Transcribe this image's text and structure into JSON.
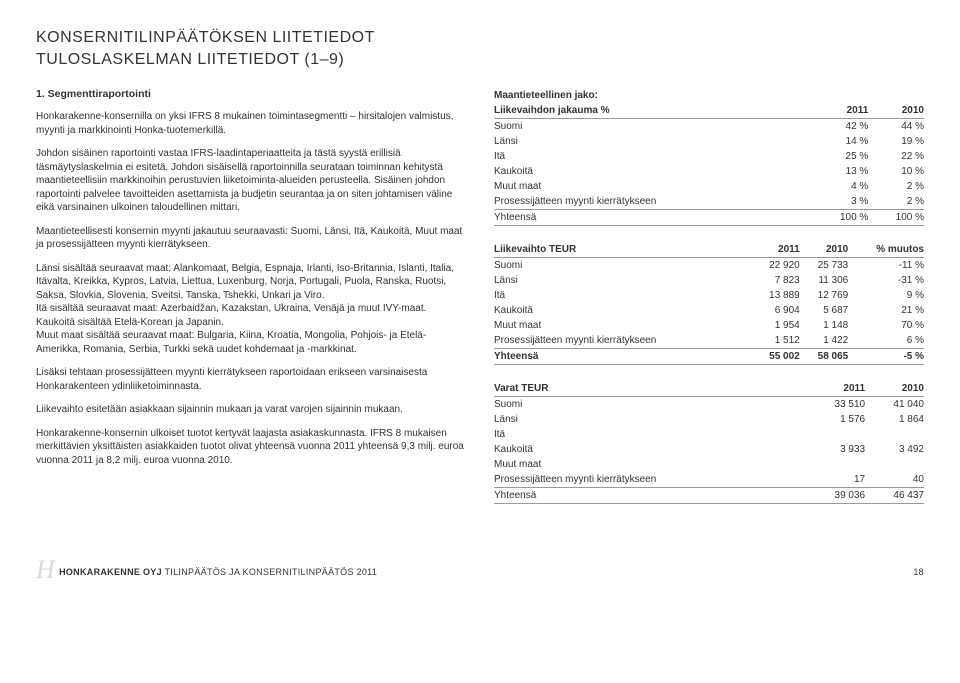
{
  "header": {
    "line1": "KONSERNITILINPÄÄTÖKSEN LIITETIEDOT",
    "line2": "TULOSLASKELMAN LIITETIEDOT (1–9)"
  },
  "left": {
    "section_title": "1. Segmenttiraportointi",
    "p1": "Honkarakenne-konsernilla on yksi IFRS 8 mukainen toimintasegmentti – hirsitalojen valmistus, myynti ja markkinointi Honka-tuotemerkillä.",
    "p2": "Johdon sisäinen raportointi vastaa IFRS-laadintaperiaatteita ja tästä syystä erillisiä täsmäytyslaskelmia ei esitetä. Johdon sisäisellä raportoinnilla seurataan toiminnan kehitystä maantieteellisiin markkinoihin perustuvien liiketoiminta-alueiden perusteella. Sisäinen johdon raportointi palvelee tavoitteiden asettamista ja budjetin seurantaa ja on siten johtamisen väline eikä varsinainen ulkoinen taloudellinen mittari.",
    "p3": "Maantieteellisesti konsernin myynti jakautuu seuraavasti: Suomi, Länsi, Itä, Kaukoitä, Muut maat ja prosessijätteen myynti kierrätykseen.",
    "p4": "Länsi sisältää seuraavat maat: Alankomaat, Belgia, Espnaja, Irlanti, Iso-Britannia, Islanti, Italia, Itävalta, Kreikka, Kypros, Latvia, Liettua, Luxenburg, Norja, Portugali, Puola, Ranska, Ruotsi, Saksa, Slovkia, Slovenia, Sveitsi, Tanska, Tshekki, Unkari ja Viro.",
    "p5": "Itä sisältää seuraavat maat: Azerbaidžan, Kazakstan, Ukraina, Venäjä ja muut IVY-maat.",
    "p6": "Kaukoitä sisältää Etelä-Korean ja Japanin.",
    "p7": "Muut maat sisältää seuraavat maat: Bulgaria, Kiina, Kroatia, Mongolia, Pohjois- ja Etelä-Amerikka, Romania, Serbia, Turkki sekä uudet kohdemaat ja -markkinat.",
    "p8": "Lisäksi tehtaan prosessijätteen myynti kierrätykseen raportoidaan erikseen varsinaisesta Honkarakenteen ydinliiketoiminnasta.",
    "p9": "Liikevaihto esitetään asiakkaan sijainnin mukaan ja varat varojen sijainnin mukaan.",
    "p10": "Honkarakenne-konsernin ulkoiset tuotot kertyvät laajasta asiakaskunnasta. IFRS 8 mukaisen merkittävien yksittäisten asiakkaiden tuotot olivat yhteensä vuonna 2011 yhteensä 9,3 milj. euroa vuonna 2011 ja 8,2 milj. euroa vuonna 2010."
  },
  "right": {
    "tbl1": {
      "title1": "Maantieteellinen jako:",
      "title2": "Liikevaihdon jakauma %",
      "head_2011": "2011",
      "head_2010": "2010",
      "rows": [
        {
          "label": "Suomi",
          "v1": "42 %",
          "v2": "44 %"
        },
        {
          "label": "Länsi",
          "v1": "14 %",
          "v2": "19 %"
        },
        {
          "label": "Itä",
          "v1": "25 %",
          "v2": "22 %"
        },
        {
          "label": "Kaukoitä",
          "v1": "13 %",
          "v2": "10 %"
        },
        {
          "label": "Muut maat",
          "v1": "4 %",
          "v2": "2 %"
        },
        {
          "label": "Prosessijätteen myynti kierrätykseen",
          "v1": "3 %",
          "v2": "2 %"
        }
      ],
      "total": {
        "label": "Yhteensä",
        "v1": "100 %",
        "v2": "100 %"
      }
    },
    "tbl2": {
      "title": "Liikevaihto TEUR",
      "head_2011": "2011",
      "head_2010": "2010",
      "head_muutos": "% muutos",
      "rows": [
        {
          "label": "Suomi",
          "v1": "22 920",
          "v2": "25 733",
          "v3": "-11 %"
        },
        {
          "label": "Länsi",
          "v1": "7 823",
          "v2": "11 306",
          "v3": "-31 %"
        },
        {
          "label": "Itä",
          "v1": "13 889",
          "v2": "12 769",
          "v3": "9 %"
        },
        {
          "label": "Kaukoitä",
          "v1": "6 904",
          "v2": "5 687",
          "v3": "21 %"
        },
        {
          "label": "Muut maat",
          "v1": "1 954",
          "v2": "1 148",
          "v3": "70 %"
        },
        {
          "label": "Prosessijätteen myynti kierrätykseen",
          "v1": "1 512",
          "v2": "1 422",
          "v3": "6 %"
        }
      ],
      "total": {
        "label": "Yhteensä",
        "v1": "55 002",
        "v2": "58 065",
        "v3": "-5 %"
      }
    },
    "tbl3": {
      "title": "Varat TEUR",
      "head_2011": "2011",
      "head_2010": "2010",
      "rows": [
        {
          "label": "Suomi",
          "v1": "33 510",
          "v2": "41 040"
        },
        {
          "label": "Länsi",
          "v1": "1 576",
          "v2": "1 864"
        },
        {
          "label": "Itä",
          "v1": "",
          "v2": ""
        },
        {
          "label": "Kaukoitä",
          "v1": "3 933",
          "v2": "3 492"
        },
        {
          "label": "Muut maat",
          "v1": "",
          "v2": ""
        },
        {
          "label": "Prosessijätteen myynti kierrätykseen",
          "v1": "17",
          "v2": "40"
        }
      ],
      "total": {
        "label": "Yhteensä",
        "v1": "39 036",
        "v2": "46 437"
      }
    }
  },
  "footer": {
    "logo": "H",
    "company": "HONKARAKENNE OYJ",
    "rest": " TILINPÄÄTÖS JA KONSERNITILINPÄÄTÖS 2011",
    "page": "18"
  }
}
